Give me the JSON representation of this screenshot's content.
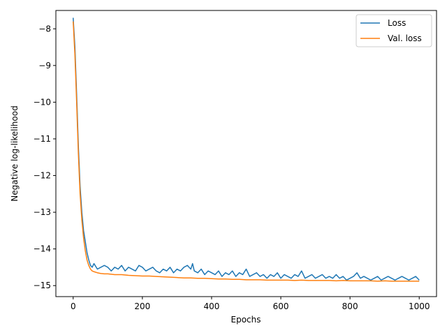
{
  "chart_data": {
    "type": "line",
    "xlabel": "Epochs",
    "ylabel": "Negative log-likelihood",
    "xlim": [
      -50,
      1050
    ],
    "ylim": [
      -15.3,
      -7.5
    ],
    "xticks": [
      0,
      200,
      400,
      600,
      800,
      1000
    ],
    "yticks": [
      -15,
      -14,
      -13,
      -12,
      -11,
      -10,
      -9,
      -8
    ],
    "ytick_labels": [
      "−15",
      "−14",
      "−13",
      "−12",
      "−11",
      "−10",
      "−9",
      "−8"
    ],
    "grid": false,
    "legend": {
      "placement": "upper right"
    },
    "series": [
      {
        "name": "Loss",
        "color": "#1f77b4",
        "x": [
          0,
          5,
          10,
          15,
          20,
          25,
          30,
          35,
          40,
          45,
          50,
          55,
          60,
          70,
          80,
          90,
          100,
          110,
          120,
          130,
          140,
          150,
          160,
          170,
          180,
          190,
          200,
          210,
          220,
          230,
          240,
          250,
          260,
          270,
          280,
          290,
          300,
          310,
          320,
          330,
          340,
          345,
          350,
          360,
          370,
          380,
          390,
          400,
          410,
          420,
          430,
          440,
          450,
          460,
          470,
          480,
          490,
          500,
          510,
          520,
          530,
          540,
          550,
          560,
          570,
          580,
          590,
          600,
          610,
          620,
          630,
          640,
          650,
          660,
          670,
          680,
          690,
          700,
          710,
          720,
          730,
          740,
          750,
          760,
          770,
          780,
          790,
          800,
          810,
          820,
          830,
          840,
          850,
          860,
          870,
          880,
          890,
          900,
          910,
          920,
          930,
          940,
          950,
          960,
          970,
          980,
          990,
          1000
        ],
        "values": [
          -7.7,
          -8.5,
          -9.8,
          -11.2,
          -12.3,
          -13.0,
          -13.5,
          -13.8,
          -14.1,
          -14.3,
          -14.45,
          -14.5,
          -14.4,
          -14.55,
          -14.5,
          -14.45,
          -14.5,
          -14.6,
          -14.5,
          -14.55,
          -14.45,
          -14.6,
          -14.5,
          -14.55,
          -14.6,
          -14.45,
          -14.5,
          -14.6,
          -14.55,
          -14.5,
          -14.6,
          -14.65,
          -14.55,
          -14.6,
          -14.5,
          -14.65,
          -14.55,
          -14.6,
          -14.5,
          -14.45,
          -14.55,
          -14.4,
          -14.6,
          -14.65,
          -14.55,
          -14.7,
          -14.6,
          -14.65,
          -14.7,
          -14.6,
          -14.75,
          -14.65,
          -14.7,
          -14.6,
          -14.75,
          -14.65,
          -14.7,
          -14.55,
          -14.75,
          -14.7,
          -14.65,
          -14.75,
          -14.7,
          -14.8,
          -14.7,
          -14.75,
          -14.65,
          -14.8,
          -14.7,
          -14.75,
          -14.8,
          -14.7,
          -14.75,
          -14.6,
          -14.8,
          -14.75,
          -14.7,
          -14.8,
          -14.75,
          -14.7,
          -14.8,
          -14.75,
          -14.8,
          -14.7,
          -14.8,
          -14.75,
          -14.85,
          -14.8,
          -14.75,
          -14.65,
          -14.8,
          -14.75,
          -14.8,
          -14.85,
          -14.8,
          -14.75,
          -14.85,
          -14.8,
          -14.75,
          -14.8,
          -14.85,
          -14.8,
          -14.75,
          -14.8,
          -14.85,
          -14.8,
          -14.75,
          -14.85
        ]
      },
      {
        "name": "Val. loss",
        "color": "#ff7f0e",
        "x": [
          0,
          5,
          10,
          15,
          20,
          25,
          30,
          35,
          40,
          45,
          50,
          55,
          60,
          70,
          80,
          90,
          100,
          120,
          140,
          160,
          180,
          200,
          220,
          240,
          260,
          280,
          300,
          320,
          340,
          360,
          380,
          400,
          420,
          440,
          460,
          480,
          500,
          520,
          540,
          560,
          580,
          600,
          620,
          640,
          660,
          680,
          700,
          720,
          740,
          760,
          780,
          800,
          820,
          840,
          860,
          880,
          900,
          920,
          940,
          960,
          980,
          1000
        ],
        "values": [
          -7.8,
          -8.7,
          -10.0,
          -11.4,
          -12.5,
          -13.2,
          -13.7,
          -14.05,
          -14.3,
          -14.45,
          -14.55,
          -14.6,
          -14.62,
          -14.65,
          -14.67,
          -14.68,
          -14.68,
          -14.7,
          -14.7,
          -14.72,
          -14.73,
          -14.74,
          -14.74,
          -14.75,
          -14.76,
          -14.77,
          -14.78,
          -14.79,
          -14.79,
          -14.8,
          -14.8,
          -14.81,
          -14.82,
          -14.82,
          -14.83,
          -14.83,
          -14.84,
          -14.84,
          -14.84,
          -14.85,
          -14.85,
          -14.85,
          -14.85,
          -14.86,
          -14.85,
          -14.86,
          -14.86,
          -14.86,
          -14.86,
          -14.87,
          -14.86,
          -14.87,
          -14.87,
          -14.87,
          -14.87,
          -14.88,
          -14.87,
          -14.88,
          -14.88,
          -14.88,
          -14.88,
          -14.88
        ]
      }
    ]
  }
}
